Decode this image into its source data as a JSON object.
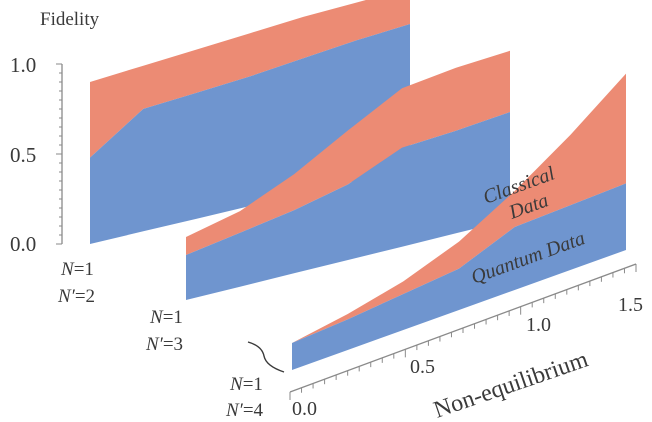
{
  "chart_data": {
    "type": "area",
    "title": "",
    "ylabel": "Fidelity",
    "xlabel": "Non-equilibrium",
    "ylim": [
      0.0,
      1.0
    ],
    "xlim": [
      0.0,
      1.5
    ],
    "y_ticks": [
      "0.0",
      "0.5",
      "1.0"
    ],
    "x_ticks": [
      "0.0",
      "0.5",
      "1.0",
      "1.5"
    ],
    "grid": false,
    "colors": {
      "classical": "#EC8B74",
      "quantum": "#6F95CF"
    },
    "annotations": {
      "classical": [
        "Classical",
        "Data"
      ],
      "quantum": "Quantum Data"
    },
    "panels": [
      {
        "label": {
          "n": "N",
          "n_val": "=1",
          "np": "N′",
          "np_val": "=2"
        },
        "x": [
          0.0,
          0.25,
          0.5,
          0.75,
          1.0,
          1.25,
          1.5
        ],
        "series": [
          {
            "name": "Classical Data",
            "values": [
              0.9,
              0.92,
              0.94,
              0.96,
              0.98,
              0.99,
              1.0
            ]
          },
          {
            "name": "Quantum Data",
            "values": [
              0.48,
              0.68,
              0.7,
              0.72,
              0.75,
              0.78,
              0.8
            ]
          }
        ]
      },
      {
        "label": {
          "n": "N",
          "n_val": "=1",
          "np": "N′",
          "np_val": "=3"
        },
        "x": [
          0.0,
          0.25,
          0.5,
          0.75,
          1.0,
          1.25,
          1.5
        ],
        "series": [
          {
            "name": "Classical Data",
            "values": [
              0.35,
              0.42,
              0.55,
              0.72,
              0.88,
              0.92,
              0.94
            ]
          },
          {
            "name": "Quantum Data",
            "values": [
              0.25,
              0.3,
              0.35,
              0.42,
              0.55,
              0.57,
              0.6
            ]
          }
        ]
      },
      {
        "label": {
          "n": "N",
          "n_val": "=1",
          "np": "N′",
          "np_val": "=4"
        },
        "x": [
          0.0,
          0.25,
          0.5,
          0.75,
          1.0,
          1.25,
          1.5
        ],
        "series": [
          {
            "name": "Classical Data",
            "values": [
              0.15,
              0.2,
              0.27,
              0.38,
              0.55,
              0.75,
              0.98
            ]
          },
          {
            "name": "Quantum Data",
            "values": [
              0.15,
              0.17,
              0.2,
              0.23,
              0.35,
              0.36,
              0.37
            ]
          }
        ]
      }
    ]
  }
}
